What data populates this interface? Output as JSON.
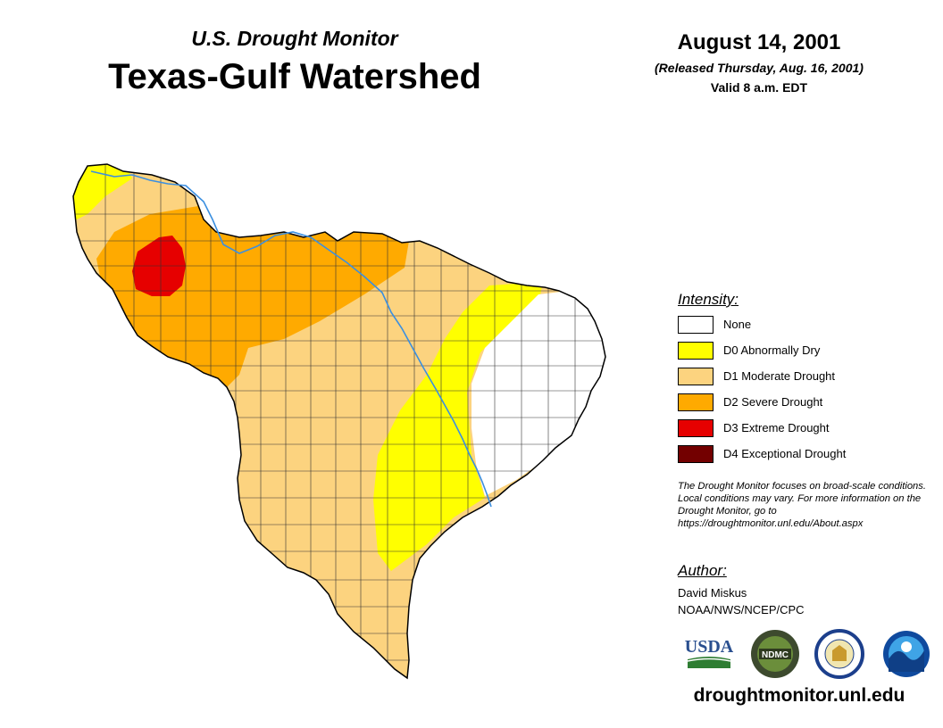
{
  "header": {
    "subtitle": "U.S. Drought Monitor",
    "title": "Texas-Gulf Watershed",
    "date": "August 14, 2001",
    "released": "(Released Thursday, Aug. 16, 2001)",
    "valid": "Valid 8 a.m. EDT"
  },
  "legend": {
    "title": "Intensity:",
    "items": [
      {
        "label": "None",
        "color": "#ffffff"
      },
      {
        "label": "D0 Abnormally Dry",
        "color": "#ffff00"
      },
      {
        "label": "D1 Moderate Drought",
        "color": "#fcd37f"
      },
      {
        "label": "D2 Severe Drought",
        "color": "#ffaa00"
      },
      {
        "label": "D3 Extreme Drought",
        "color": "#e60000"
      },
      {
        "label": "D4 Exceptional Drought",
        "color": "#730000"
      }
    ]
  },
  "disclaimer": "The Drought Monitor focuses on broad-scale conditions. Local conditions may vary. For more information on the Drought Monitor, go to https://droughtmonitor.unl.edu/About.aspx",
  "author": {
    "title": "Author:",
    "name": "David Miskus",
    "org": "NOAA/NWS/NCEP/CPC"
  },
  "logos": {
    "usda": "USDA",
    "ndmc": "NDMC",
    "noaa": "NOAA"
  },
  "footer_url": "droughtmonitor.unl.edu"
}
